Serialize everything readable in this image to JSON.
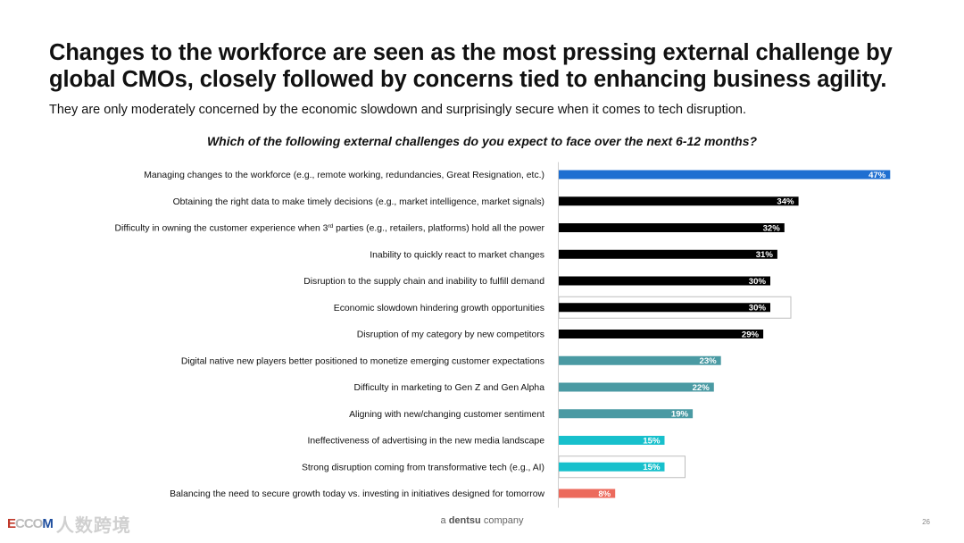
{
  "slide": {
    "title": "Changes to the workforce are seen as the most pressing external challenge by global CMOs, closely followed by concerns tied to enhancing business agility.",
    "subtitle": "They are only moderately concerned by the economic slowdown and surprisingly secure when it comes to tech disruption.",
    "footer_prefix": "a ",
    "footer_brand": "dentsu",
    "footer_suffix": " company",
    "page_number": "26",
    "watermark_text": "人数跨境",
    "watermark_logo": "ECCOM"
  },
  "colors": {
    "blue": "#1f6fd1",
    "black": "#000000",
    "teal": "#4a9aa3",
    "cyan": "#17c0cc",
    "coral": "#ec6a5c",
    "highlight_box": "#bdbdbd"
  },
  "chart_data": {
    "type": "bar",
    "orientation": "horizontal",
    "title": "Which of the following external challenges do you expect to face over the next 6-12 months?",
    "xlabel": "",
    "ylabel": "",
    "xlim": [
      0,
      50
    ],
    "grid": false,
    "legend": "none",
    "categories": [
      "Managing changes to the workforce (e.g., remote working, redundancies, Great Resignation, etc.)",
      "Obtaining the right data to make timely decisions (e.g., market intelligence, market signals)",
      "Difficulty in owning the customer experience when 3rd parties (e.g., retailers, platforms) hold all the power",
      "Inability to quickly react to market changes",
      "Disruption to the supply chain and inability to fulfill demand",
      "Economic slowdown hindering growth opportunities",
      "Disruption of my category by new competitors",
      "Digital native new players better positioned to monetize emerging customer expectations",
      "Difficulty in marketing to Gen Z and Gen Alpha",
      "Aligning with new/changing customer sentiment",
      "Ineffectiveness of advertising in the new media landscape",
      "Strong disruption coming from transformative tech (e.g., AI)",
      "Balancing the need to secure growth today vs. investing in initiatives designed for tomorrow"
    ],
    "values": [
      47,
      34,
      32,
      31,
      30,
      30,
      29,
      23,
      22,
      19,
      15,
      15,
      8
    ],
    "value_labels": [
      "47%",
      "34%",
      "32%",
      "31%",
      "30%",
      "30%",
      "29%",
      "23%",
      "22%",
      "19%",
      "15%",
      "15%",
      "8%"
    ],
    "bar_colors": [
      "blue",
      "black",
      "black",
      "black",
      "black",
      "black",
      "black",
      "teal",
      "teal",
      "teal",
      "cyan",
      "cyan",
      "coral"
    ],
    "highlighted": [
      false,
      false,
      false,
      false,
      false,
      true,
      false,
      false,
      false,
      false,
      false,
      true,
      false
    ]
  }
}
